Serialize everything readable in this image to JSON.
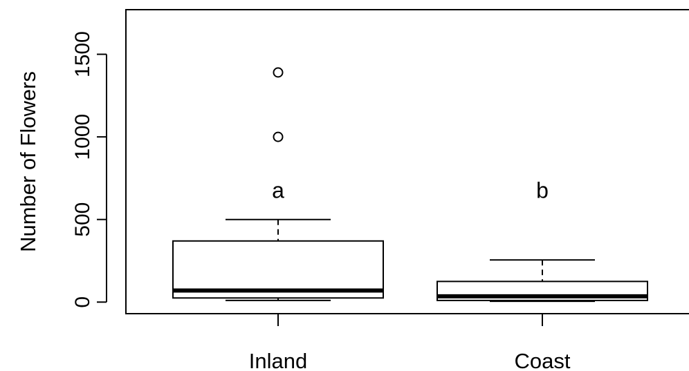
{
  "chart_data": {
    "type": "box",
    "title": "",
    "xlabel": "",
    "ylabel": "Number of Flowers",
    "ylim": [
      -70,
      1770
    ],
    "y_ticks": [
      0,
      500,
      1000,
      1500
    ],
    "y_tick_labels": [
      "0",
      "500",
      "1000",
      "1500"
    ],
    "grid": false,
    "categories": [
      "Inland",
      "Coast"
    ],
    "boxes": [
      {
        "category": "Inland",
        "whisker_low": 10,
        "q1": 25,
        "median": 70,
        "q3": 370,
        "whisker_high": 500,
        "outliers": [
          1000,
          1390
        ],
        "annotation": "a"
      },
      {
        "category": "Coast",
        "whisker_low": 5,
        "q1": 10,
        "median": 35,
        "q3": 125,
        "whisker_high": 255,
        "outliers": [],
        "annotation": "b"
      }
    ],
    "annotation_y": 680
  }
}
